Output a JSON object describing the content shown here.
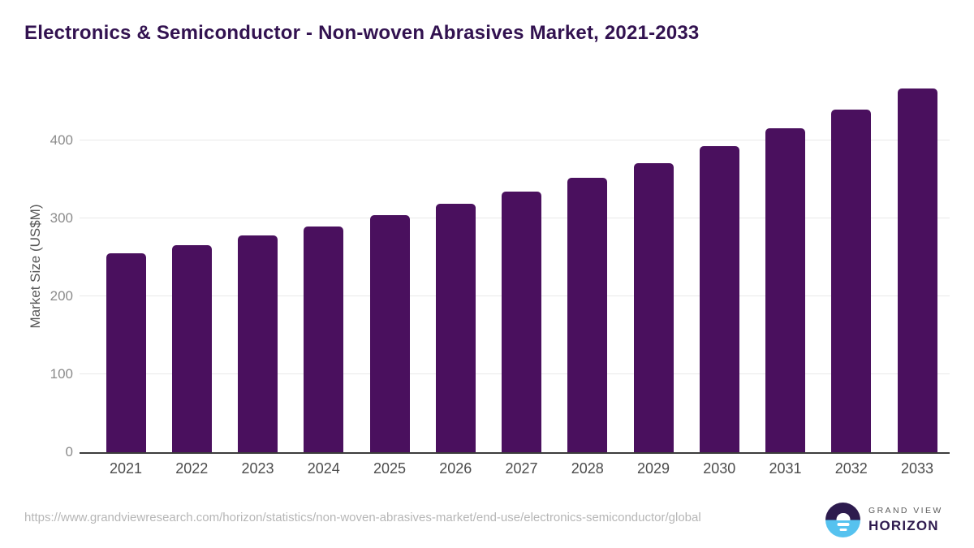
{
  "page": {
    "title": "Electronics & Semiconductor - Non-woven Abrasives Market, 2021-2033"
  },
  "chart_data": {
    "type": "bar",
    "title": "Electronics & Semiconductor - Non-woven Abrasives Market, 2021-2033",
    "categories": [
      "2021",
      "2022",
      "2023",
      "2024",
      "2025",
      "2026",
      "2027",
      "2028",
      "2029",
      "2030",
      "2031",
      "2032",
      "2033"
    ],
    "values": [
      255,
      266,
      278,
      290,
      304,
      319,
      334,
      352,
      371,
      393,
      416,
      440,
      467
    ],
    "xlabel": "",
    "ylabel": "Market Size (US$M)",
    "ylim": [
      0,
      480
    ],
    "yticks": [
      0,
      100,
      200,
      300,
      400
    ],
    "grid": "horizontal-light",
    "legend": "none",
    "bar_color": "#4a105e"
  },
  "colors": {
    "title_text": "#321250",
    "bar_fill": "#4a105e",
    "grid_line": "#e9e9e9",
    "axis_line": "#3c3c3c",
    "y_tick_label": "#8b8b8b",
    "x_tick_label": "#4c4c4c",
    "y_axis_title": "#565656",
    "url_text": "#b6b6b6",
    "logo_dark_purple": "#2d1b4e",
    "logo_light_blue": "#56c2ef",
    "logo_gray_text": "#5b5b5b"
  },
  "footer": {
    "source_url": "https://www.grandviewresearch.com/horizon/statistics/non-woven-abrasives-market/end-use/electronics-semiconductor/global",
    "logo": {
      "icon": "sunset-circle-icon",
      "line1": "GRAND VIEW",
      "line2": "HORIZON"
    }
  }
}
